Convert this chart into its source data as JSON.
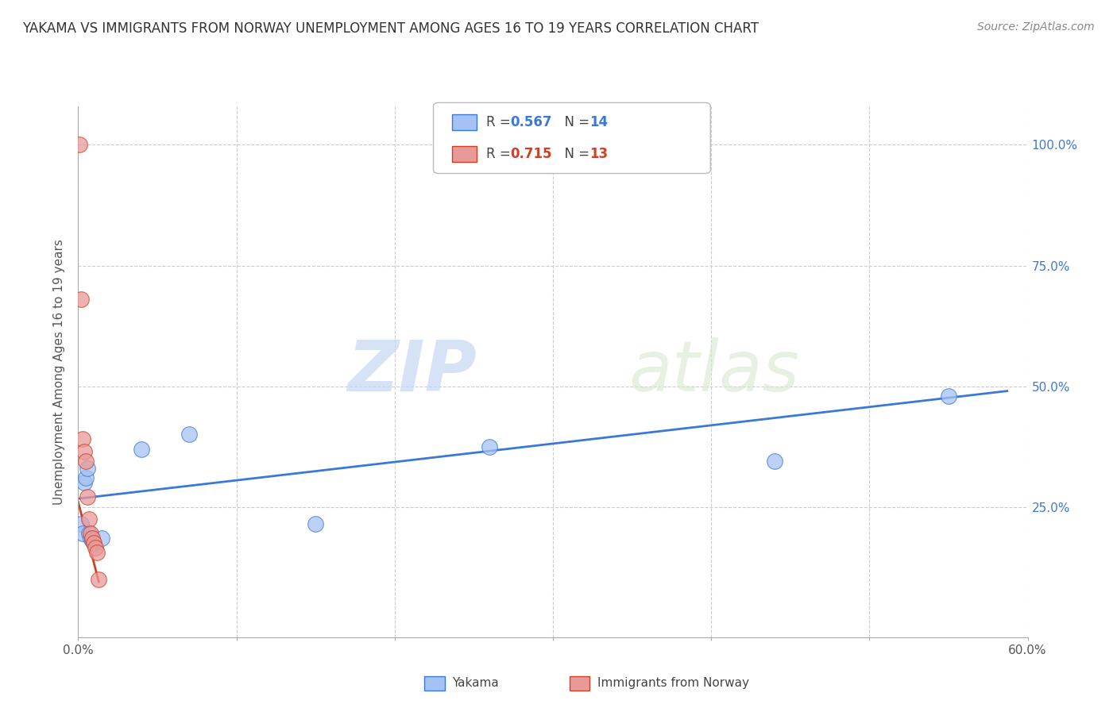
{
  "title": "YAKAMA VS IMMIGRANTS FROM NORWAY UNEMPLOYMENT AMONG AGES 16 TO 19 YEARS CORRELATION CHART",
  "source": "Source: ZipAtlas.com",
  "ylabel": "Unemployment Among Ages 16 to 19 years",
  "xlim": [
    0.0,
    0.6
  ],
  "ylim": [
    -0.02,
    1.08
  ],
  "yticks": [
    0.25,
    0.5,
    0.75,
    1.0
  ],
  "ytick_labels": [
    "25.0%",
    "50.0%",
    "75.0%",
    "100.0%"
  ],
  "xticks": [
    0.0,
    0.1,
    0.2,
    0.3,
    0.4,
    0.5,
    0.6
  ],
  "xtick_labels": [
    "0.0%",
    "",
    "",
    "",
    "",
    "",
    "60.0%"
  ],
  "watermark_zip": "ZIP",
  "watermark_atlas": "atlas",
  "blue_color": "#a4c2f4",
  "pink_color": "#ea9999",
  "blue_line_color": "#3c78d8",
  "pink_line_color": "#cc4125",
  "r_n_color_blue": "#3c78d8",
  "r_n_color_pink": "#cc4125",
  "yakama_points_x": [
    0.002,
    0.003,
    0.004,
    0.005,
    0.006,
    0.007,
    0.008,
    0.009,
    0.01,
    0.015,
    0.04,
    0.07,
    0.15,
    0.26,
    0.44,
    0.55
  ],
  "yakama_points_y": [
    0.215,
    0.195,
    0.3,
    0.31,
    0.33,
    0.195,
    0.185,
    0.18,
    0.175,
    0.185,
    0.37,
    0.4,
    0.215,
    0.375,
    0.345,
    0.48
  ],
  "norway_points_x": [
    0.001,
    0.002,
    0.003,
    0.004,
    0.005,
    0.006,
    0.007,
    0.008,
    0.009,
    0.01,
    0.011,
    0.012,
    0.013
  ],
  "norway_points_y": [
    1.0,
    0.68,
    0.39,
    0.365,
    0.345,
    0.27,
    0.225,
    0.195,
    0.185,
    0.175,
    0.165,
    0.155,
    0.1
  ],
  "blue_line_x": [
    0.0,
    0.587
  ],
  "blue_line_y": [
    0.267,
    0.49
  ],
  "pink_line_x": [
    0.0,
    0.013
  ],
  "pink_line_y": [
    0.26,
    0.095
  ],
  "background_color": "#ffffff",
  "grid_color": "#cccccc"
}
